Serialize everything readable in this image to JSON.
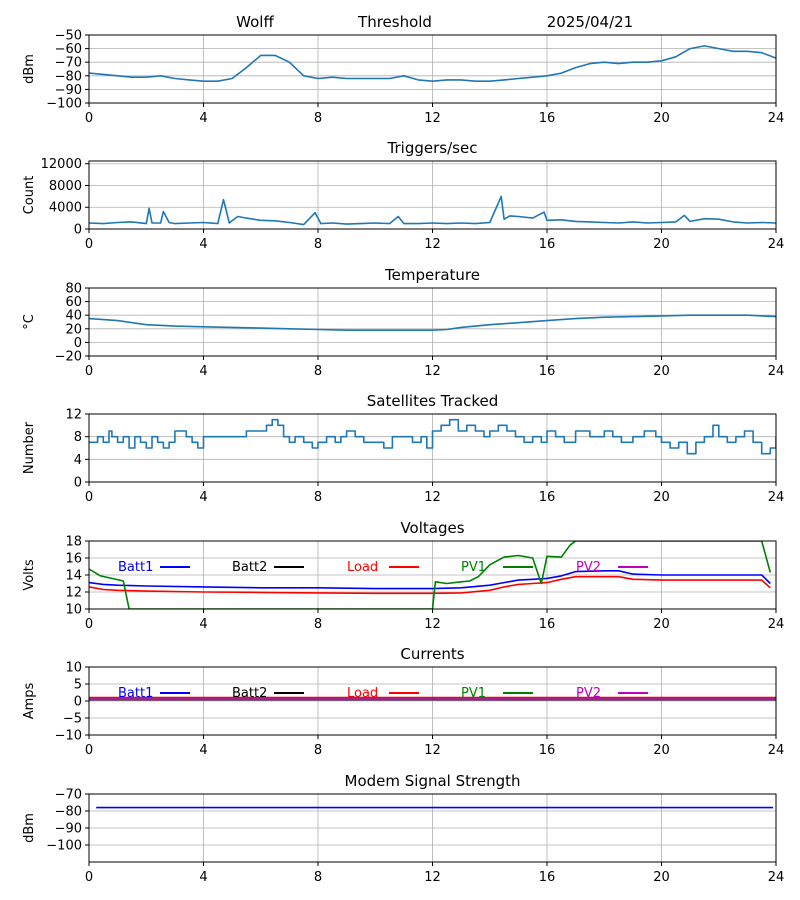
{
  "header": {
    "station": "Wolff",
    "mode": "Threshold",
    "date": "2025/04/21"
  },
  "chart_data": [
    {
      "id": "threshold",
      "type": "line",
      "title": "",
      "ylabel": "dBm",
      "xlim": [
        0,
        24
      ],
      "ylim": [
        -100,
        -50
      ],
      "xticks": [
        0,
        4,
        8,
        12,
        16,
        20,
        24
      ],
      "yticks": [
        -100,
        -90,
        -80,
        -70,
        -60,
        -50
      ],
      "grid": true,
      "series": [
        {
          "color": "#1f77b4",
          "x": [
            0,
            0.5,
            1,
            1.5,
            2,
            2.5,
            3,
            3.5,
            4,
            4.5,
            5,
            5.5,
            6,
            6.5,
            7,
            7.5,
            8,
            8.5,
            9,
            9.5,
            10,
            10.5,
            11,
            11.5,
            12,
            12.5,
            13,
            13.5,
            14,
            14.5,
            15,
            15.5,
            16,
            16.5,
            17,
            17.5,
            18,
            18.5,
            19,
            19.5,
            20,
            20.5,
            21,
            21.5,
            22,
            22.5,
            23,
            23.5,
            24
          ],
          "y": [
            -78,
            -79,
            -80,
            -81,
            -81,
            -80,
            -82,
            -83,
            -84,
            -84,
            -82,
            -74,
            -65,
            -65,
            -70,
            -80,
            -82,
            -81,
            -82,
            -82,
            -82,
            -82,
            -80,
            -83,
            -84,
            -83,
            -83,
            -84,
            -84,
            -83,
            -82,
            -81,
            -80,
            -78,
            -74,
            -71,
            -70,
            -71,
            -70,
            -70,
            -69,
            -66,
            -60,
            -58,
            -60,
            -62,
            -62,
            -63,
            -67
          ]
        }
      ]
    },
    {
      "id": "triggers",
      "type": "line",
      "title": "Triggers/sec",
      "ylabel": "Count",
      "xlim": [
        0,
        24
      ],
      "ylim": [
        0,
        12500
      ],
      "xticks": [
        0,
        4,
        8,
        12,
        16,
        20,
        24
      ],
      "yticks": [
        0,
        4000,
        8000,
        12000
      ],
      "grid": true,
      "series": [
        {
          "color": "#1f77b4",
          "x": [
            0,
            0.5,
            1,
            1.5,
            2,
            2.1,
            2.2,
            2.5,
            2.6,
            2.8,
            3,
            3.5,
            4,
            4.5,
            4.7,
            4.9,
            5,
            5.2,
            5.5,
            6,
            6.5,
            7,
            7.5,
            7.9,
            8.1,
            8.5,
            9,
            9.5,
            10,
            10.5,
            10.8,
            11,
            11.5,
            12,
            12.5,
            13,
            13.5,
            14,
            14.4,
            14.5,
            14.7,
            15,
            15.5,
            15.9,
            16,
            16.5,
            17,
            17.5,
            18,
            18.5,
            19,
            19.5,
            20,
            20.5,
            20.8,
            21,
            21.5,
            22,
            22.5,
            23,
            23.5,
            24
          ],
          "y": [
            1100,
            1000,
            1200,
            1300,
            1000,
            3800,
            1100,
            1100,
            3200,
            1200,
            1000,
            1100,
            1200,
            1000,
            5400,
            1100,
            1500,
            2300,
            2000,
            1600,
            1500,
            1200,
            800,
            3000,
            1000,
            1100,
            900,
            1000,
            1100,
            1000,
            2300,
            1000,
            1000,
            1100,
            1000,
            1100,
            1000,
            1200,
            6000,
            1800,
            2400,
            2300,
            2000,
            3100,
            1600,
            1700,
            1400,
            1300,
            1200,
            1100,
            1300,
            1100,
            1200,
            1300,
            2500,
            1400,
            1900,
            1800,
            1300,
            1100,
            1200,
            1100
          ]
        }
      ]
    },
    {
      "id": "temperature",
      "type": "line",
      "title": "Temperature",
      "ylabel": "°C",
      "xlim": [
        0,
        24
      ],
      "ylim": [
        -20,
        80
      ],
      "xticks": [
        0,
        4,
        8,
        12,
        16,
        20,
        24
      ],
      "yticks": [
        -20,
        0,
        20,
        40,
        60,
        80
      ],
      "grid": true,
      "series": [
        {
          "color": "#1f77b4",
          "x": [
            0,
            1,
            2,
            3,
            4,
            5,
            6,
            7,
            8,
            9,
            10,
            11,
            12,
            12.5,
            13,
            14,
            15,
            16,
            17,
            18,
            19,
            20,
            21,
            22,
            23,
            24
          ],
          "y": [
            35,
            32,
            26,
            24,
            23,
            22,
            21,
            20,
            19,
            18,
            18,
            18,
            18,
            19,
            22,
            26,
            29,
            32,
            35,
            37,
            38,
            39,
            40,
            40,
            40,
            38
          ]
        }
      ]
    },
    {
      "id": "satellites",
      "type": "line",
      "title": "Satellites Tracked",
      "ylabel": "Number",
      "xlim": [
        0,
        24
      ],
      "ylim": [
        0,
        12
      ],
      "xticks": [
        0,
        4,
        8,
        12,
        16,
        20,
        24
      ],
      "yticks": [
        0,
        4,
        8,
        12
      ],
      "grid": true,
      "series": [
        {
          "color": "#1f77b4",
          "step": true,
          "x": [
            0,
            0.3,
            0.5,
            0.7,
            0.8,
            1,
            1.2,
            1.4,
            1.6,
            1.8,
            2,
            2.2,
            2.4,
            2.6,
            2.8,
            3,
            3.4,
            3.6,
            3.8,
            4,
            4.5,
            5,
            5.5,
            6,
            6.2,
            6.4,
            6.6,
            6.8,
            7,
            7.2,
            7.5,
            7.8,
            8,
            8.3,
            8.6,
            8.8,
            9,
            9.3,
            9.6,
            10,
            10.3,
            10.6,
            11,
            11.3,
            11.6,
            11.8,
            12,
            12.3,
            12.6,
            12.9,
            13.2,
            13.5,
            13.8,
            14,
            14.3,
            14.6,
            14.9,
            15.2,
            15.5,
            15.8,
            16,
            16.3,
            16.6,
            17,
            17.5,
            18,
            18.3,
            18.6,
            19,
            19.4,
            19.8,
            20,
            20.3,
            20.6,
            20.9,
            21.2,
            21.5,
            21.8,
            22,
            22.3,
            22.6,
            22.9,
            23.2,
            23.5,
            23.8,
            24
          ],
          "y": [
            7,
            8,
            7,
            9,
            8,
            7,
            8,
            6,
            8,
            7,
            6,
            8,
            7,
            6,
            7,
            9,
            8,
            7,
            6,
            8,
            8,
            8,
            9,
            9,
            10,
            11,
            10,
            8,
            7,
            8,
            7,
            6,
            7,
            8,
            7,
            8,
            9,
            8,
            7,
            7,
            6,
            8,
            8,
            7,
            8,
            6,
            9,
            10,
            11,
            9,
            10,
            9,
            8,
            9,
            10,
            9,
            8,
            7,
            8,
            7,
            9,
            8,
            7,
            9,
            8,
            9,
            8,
            7,
            8,
            9,
            8,
            7,
            6,
            7,
            5,
            7,
            8,
            10,
            8,
            7,
            8,
            9,
            7,
            5,
            6,
            8
          ]
        }
      ]
    },
    {
      "id": "voltages",
      "type": "line",
      "title": "Voltages",
      "ylabel": "Volts",
      "xlim": [
        0,
        24
      ],
      "ylim": [
        10,
        18
      ],
      "xticks": [
        0,
        4,
        8,
        12,
        16,
        20,
        24
      ],
      "yticks": [
        10,
        12,
        14,
        16,
        18
      ],
      "grid": true,
      "legend": "inside-top-row",
      "series": [
        {
          "name": "Batt1",
          "color": "#0000ff",
          "x": [
            0,
            0.5,
            1,
            2,
            4,
            6,
            8,
            10,
            12,
            13,
            14,
            14.5,
            15,
            15.5,
            16,
            16.5,
            17,
            18,
            18.5,
            19,
            20,
            22,
            23.5,
            23.8
          ],
          "y": [
            13.1,
            12.9,
            12.8,
            12.7,
            12.6,
            12.5,
            12.5,
            12.4,
            12.4,
            12.5,
            12.8,
            13.1,
            13.4,
            13.5,
            13.6,
            13.9,
            14.4,
            14.5,
            14.5,
            14.1,
            14.0,
            14.0,
            14.0,
            13.0
          ]
        },
        {
          "name": "Batt2",
          "color": "#000000",
          "x": [],
          "y": []
        },
        {
          "name": "Load",
          "color": "#ff0000",
          "x": [
            0,
            0.5,
            1,
            2,
            4,
            6,
            8,
            10,
            12,
            13,
            14,
            14.5,
            15,
            15.5,
            16,
            16.5,
            17,
            18,
            18.5,
            19,
            20,
            22,
            23.5,
            23.8
          ],
          "y": [
            12.6,
            12.3,
            12.2,
            12.1,
            12.0,
            11.95,
            11.9,
            11.85,
            11.85,
            11.9,
            12.2,
            12.6,
            12.9,
            13.0,
            13.1,
            13.5,
            13.8,
            13.8,
            13.8,
            13.5,
            13.4,
            13.4,
            13.4,
            12.5
          ]
        },
        {
          "name": "PV1",
          "color": "#008000",
          "x": [
            0,
            0.4,
            0.8,
            1.2,
            1.4,
            12,
            12.1,
            12.5,
            13,
            13.3,
            13.6,
            14,
            14.5,
            15,
            15.5,
            15.8,
            16,
            16.5,
            16.8,
            17,
            23.5,
            23.8
          ],
          "y": [
            14.7,
            13.9,
            13.6,
            13.3,
            10.0,
            10.0,
            13.2,
            13.0,
            13.2,
            13.3,
            13.8,
            15.2,
            16.1,
            16.3,
            16.0,
            13.0,
            16.2,
            16.1,
            17.5,
            18.0,
            18.0,
            14.3
          ]
        },
        {
          "name": "PV2",
          "color": "#bf00bf",
          "x": [],
          "y": []
        }
      ]
    },
    {
      "id": "currents",
      "type": "line",
      "title": "Currents",
      "ylabel": "Amps",
      "xlim": [
        0,
        24
      ],
      "ylim": [
        -10,
        10
      ],
      "xticks": [
        0,
        4,
        8,
        12,
        16,
        20,
        24
      ],
      "yticks": [
        -10,
        -5,
        0,
        5,
        10
      ],
      "grid": true,
      "legend": "inside-top-row",
      "series": [
        {
          "name": "Batt1",
          "color": "#0000ff",
          "x": [
            0,
            24
          ],
          "y": [
            0.5,
            0.5
          ]
        },
        {
          "name": "Batt2",
          "color": "#000000",
          "x": [],
          "y": []
        },
        {
          "name": "Load",
          "color": "#ff0000",
          "x": [
            0,
            24
          ],
          "y": [
            1.0,
            1.0
          ]
        },
        {
          "name": "PV1",
          "color": "#008000",
          "x": [
            0,
            24
          ],
          "y": [
            0.3,
            0.3
          ]
        },
        {
          "name": "PV2",
          "color": "#bf00bf",
          "x": [
            0,
            24
          ],
          "y": [
            0.4,
            0.4
          ]
        }
      ]
    },
    {
      "id": "modem",
      "type": "line",
      "title": "Modem Signal Strength",
      "ylabel": "dBm",
      "xlim": [
        0,
        24
      ],
      "ylim": [
        -110,
        -70
      ],
      "xticks": [
        0,
        4,
        8,
        12,
        16,
        20,
        24
      ],
      "yticks": [
        -100,
        -90,
        -80,
        -70
      ],
      "grid": true,
      "series": [
        {
          "color": "#0000ff",
          "x": [
            0.25,
            23.9
          ],
          "y": [
            -78,
            -78
          ]
        }
      ]
    }
  ]
}
